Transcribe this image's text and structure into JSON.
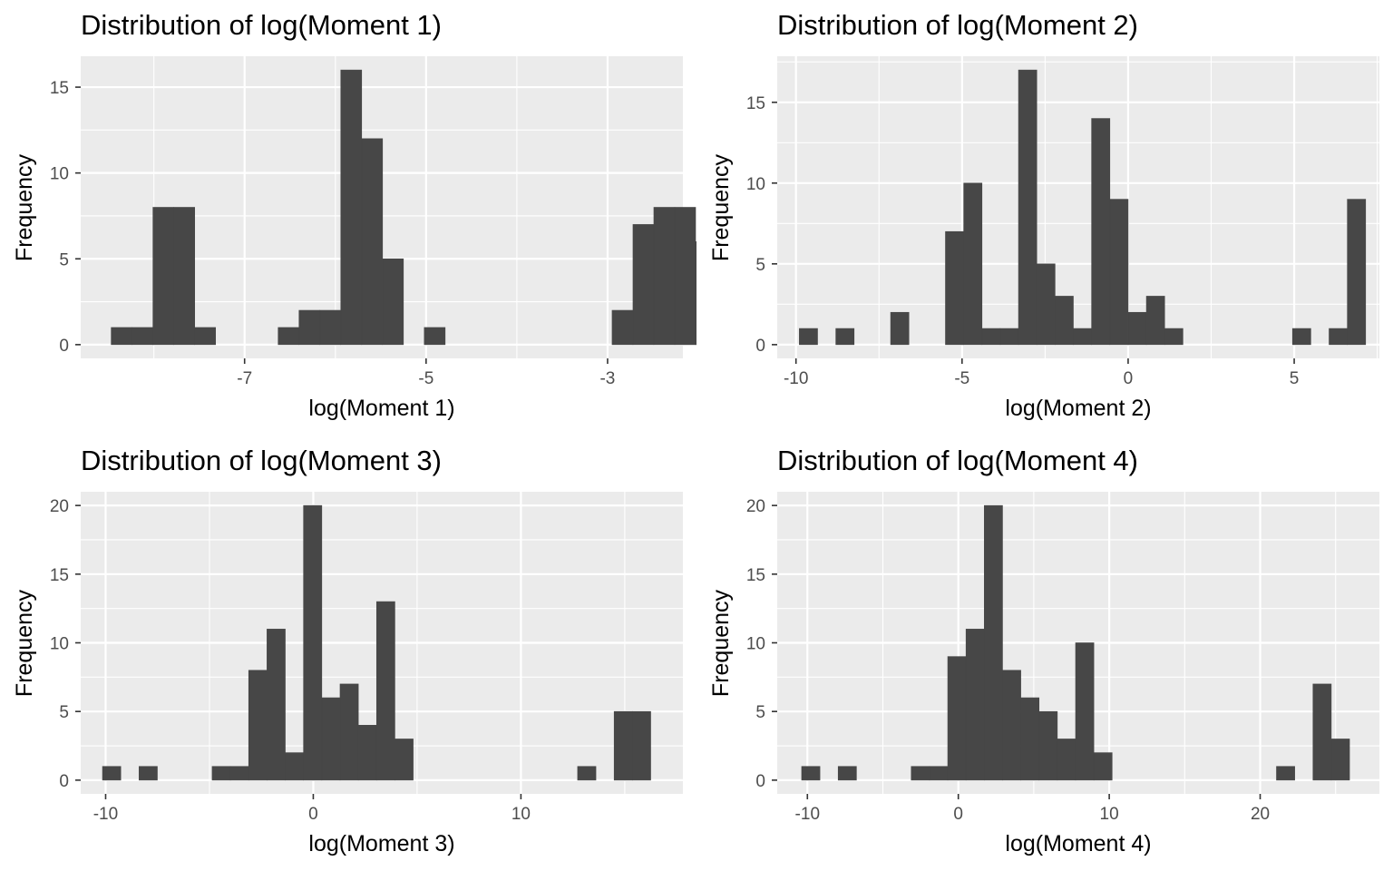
{
  "chart_data": [
    {
      "type": "bar",
      "title": "Distribution of log(Moment 1)",
      "xlabel": "log(Moment 1)",
      "ylabel": "Frequency",
      "x_ticks": [
        -7,
        -5,
        -3
      ],
      "x_minor": [
        -8,
        -6,
        -4,
        -2
      ],
      "y_ticks": [
        0,
        5,
        10,
        15
      ],
      "xlim": [
        -8.806,
        -2.17
      ],
      "ylim": [
        -0.8,
        16.8
      ],
      "bin_width": 0.23,
      "bins": [
        {
          "x0": -8.47,
          "x1": -8.24,
          "count": 1
        },
        {
          "x0": -8.24,
          "x1": -8.01,
          "count": 1
        },
        {
          "x0": -8.01,
          "x1": -7.78,
          "count": 8
        },
        {
          "x0": -7.78,
          "x1": -7.55,
          "count": 8
        },
        {
          "x0": -7.55,
          "x1": -7.32,
          "count": 1
        },
        {
          "x0": -6.63,
          "x1": -6.4,
          "count": 1
        },
        {
          "x0": -6.4,
          "x1": -6.17,
          "count": 2
        },
        {
          "x0": -6.17,
          "x1": -5.94,
          "count": 2
        },
        {
          "x0": -5.94,
          "x1": -5.71,
          "count": 16
        },
        {
          "x0": -5.71,
          "x1": -5.48,
          "count": 12
        },
        {
          "x0": -5.48,
          "x1": -5.25,
          "count": 5
        },
        {
          "x0": -5.02,
          "x1": -4.79,
          "count": 1
        },
        {
          "x0": -2.95,
          "x1": -2.72,
          "count": 2
        },
        {
          "x0": -2.72,
          "x1": -2.49,
          "count": 7
        },
        {
          "x0": -2.49,
          "x1": -2.26,
          "count": 8
        },
        {
          "x0": -2.26,
          "x1": -2.03,
          "count": 8
        },
        {
          "x0": -2.03,
          "x1": -1.8,
          "count": 6
        }
      ]
    },
    {
      "type": "bar",
      "title": "Distribution of log(Moment 2)",
      "xlabel": "log(Moment 2)",
      "ylabel": "Frequency",
      "x_ticks": [
        -10,
        -5,
        0,
        5
      ],
      "x_minor": [
        -7.5,
        -2.5,
        2.5,
        7.5
      ],
      "y_ticks": [
        0,
        5,
        10,
        15
      ],
      "xlim": [
        -10.565,
        7.565
      ],
      "ylim": [
        -0.85,
        17.85
      ],
      "bin_width": 0.55,
      "bins": [
        {
          "x0": -9.9,
          "x1": -9.35,
          "count": 1
        },
        {
          "x0": -8.8,
          "x1": -8.25,
          "count": 1
        },
        {
          "x0": -7.15,
          "x1": -6.6,
          "count": 2
        },
        {
          "x0": -5.5,
          "x1": -4.95,
          "count": 7
        },
        {
          "x0": -4.95,
          "x1": -4.4,
          "count": 10
        },
        {
          "x0": -4.4,
          "x1": -3.85,
          "count": 1
        },
        {
          "x0": -3.85,
          "x1": -3.3,
          "count": 1
        },
        {
          "x0": -3.3,
          "x1": -2.75,
          "count": 17
        },
        {
          "x0": -2.75,
          "x1": -2.2,
          "count": 5
        },
        {
          "x0": -2.2,
          "x1": -1.65,
          "count": 3
        },
        {
          "x0": -1.65,
          "x1": -1.1,
          "count": 1
        },
        {
          "x0": -1.1,
          "x1": -0.55,
          "count": 14
        },
        {
          "x0": -0.55,
          "x1": 0.0,
          "count": 9
        },
        {
          "x0": 0.0,
          "x1": 0.55,
          "count": 2
        },
        {
          "x0": 0.55,
          "x1": 1.1,
          "count": 3
        },
        {
          "x0": 1.1,
          "x1": 1.65,
          "count": 1
        },
        {
          "x0": 4.95,
          "x1": 5.5,
          "count": 1
        },
        {
          "x0": 6.05,
          "x1": 6.6,
          "count": 1
        },
        {
          "x0": 6.6,
          "x1": 7.15,
          "count": 9
        }
      ]
    },
    {
      "type": "bar",
      "title": "Distribution of log(Moment 3)",
      "xlabel": "log(Moment 3)",
      "ylabel": "Frequency",
      "x_ticks": [
        -10,
        0,
        10
      ],
      "x_minor": [
        -5,
        5,
        15
      ],
      "y_ticks": [
        0,
        5,
        10,
        15,
        20
      ],
      "xlim": [
        -11.2,
        17.8
      ],
      "ylim": [
        -1.0,
        21.0
      ],
      "bin_width": 0.88,
      "bins": [
        {
          "x0": -10.15,
          "x1": -9.27,
          "count": 1
        },
        {
          "x0": -8.39,
          "x1": -7.51,
          "count": 1
        },
        {
          "x0": -4.87,
          "x1": -3.99,
          "count": 1
        },
        {
          "x0": -3.99,
          "x1": -3.11,
          "count": 1
        },
        {
          "x0": -3.11,
          "x1": -2.23,
          "count": 8
        },
        {
          "x0": -2.23,
          "x1": -1.35,
          "count": 11
        },
        {
          "x0": -1.35,
          "x1": -0.47,
          "count": 2
        },
        {
          "x0": -0.47,
          "x1": 0.41,
          "count": 20
        },
        {
          "x0": 0.41,
          "x1": 1.29,
          "count": 6
        },
        {
          "x0": 1.29,
          "x1": 2.17,
          "count": 7
        },
        {
          "x0": 2.17,
          "x1": 3.05,
          "count": 4
        },
        {
          "x0": 3.05,
          "x1": 3.93,
          "count": 13
        },
        {
          "x0": 3.93,
          "x1": 4.81,
          "count": 3
        },
        {
          "x0": 12.73,
          "x1": 13.61,
          "count": 1
        },
        {
          "x0": 14.49,
          "x1": 15.37,
          "count": 5
        },
        {
          "x0": 15.37,
          "x1": 16.25,
          "count": 5
        }
      ]
    },
    {
      "type": "bar",
      "title": "Distribution of log(Moment 4)",
      "xlabel": "log(Moment 4)",
      "ylabel": "Frequency",
      "x_ticks": [
        -10,
        0,
        10,
        20
      ],
      "x_minor": [
        -5,
        5,
        15,
        25
      ],
      "y_ticks": [
        0,
        5,
        10,
        15,
        20
      ],
      "xlim": [
        -12.0,
        27.9
      ],
      "ylim": [
        -1.0,
        21.0
      ],
      "bin_width": 1.21,
      "bins": [
        {
          "x0": -10.38,
          "x1": -9.17,
          "count": 1
        },
        {
          "x0": -7.96,
          "x1": -6.75,
          "count": 1
        },
        {
          "x0": -3.12,
          "x1": -1.91,
          "count": 1
        },
        {
          "x0": -1.91,
          "x1": -0.7,
          "count": 1
        },
        {
          "x0": -0.7,
          "x1": 0.51,
          "count": 9
        },
        {
          "x0": 0.51,
          "x1": 1.72,
          "count": 11
        },
        {
          "x0": 1.72,
          "x1": 2.93,
          "count": 20
        },
        {
          "x0": 2.93,
          "x1": 4.14,
          "count": 8
        },
        {
          "x0": 4.14,
          "x1": 5.35,
          "count": 6
        },
        {
          "x0": 5.35,
          "x1": 6.56,
          "count": 5
        },
        {
          "x0": 6.56,
          "x1": 7.77,
          "count": 3
        },
        {
          "x0": 7.77,
          "x1": 8.98,
          "count": 10
        },
        {
          "x0": 8.98,
          "x1": 10.19,
          "count": 2
        },
        {
          "x0": 21.08,
          "x1": 22.29,
          "count": 1
        },
        {
          "x0": 23.5,
          "x1": 24.71,
          "count": 7
        },
        {
          "x0": 24.71,
          "x1": 25.92,
          "count": 3
        }
      ]
    }
  ],
  "colors": {
    "panel_background": "#ebebeb",
    "grid_major": "#ffffff",
    "bar_fill": "#474747",
    "tick_label": "#4d4d4d",
    "tick_mark": "#333333",
    "text": "#000000"
  }
}
